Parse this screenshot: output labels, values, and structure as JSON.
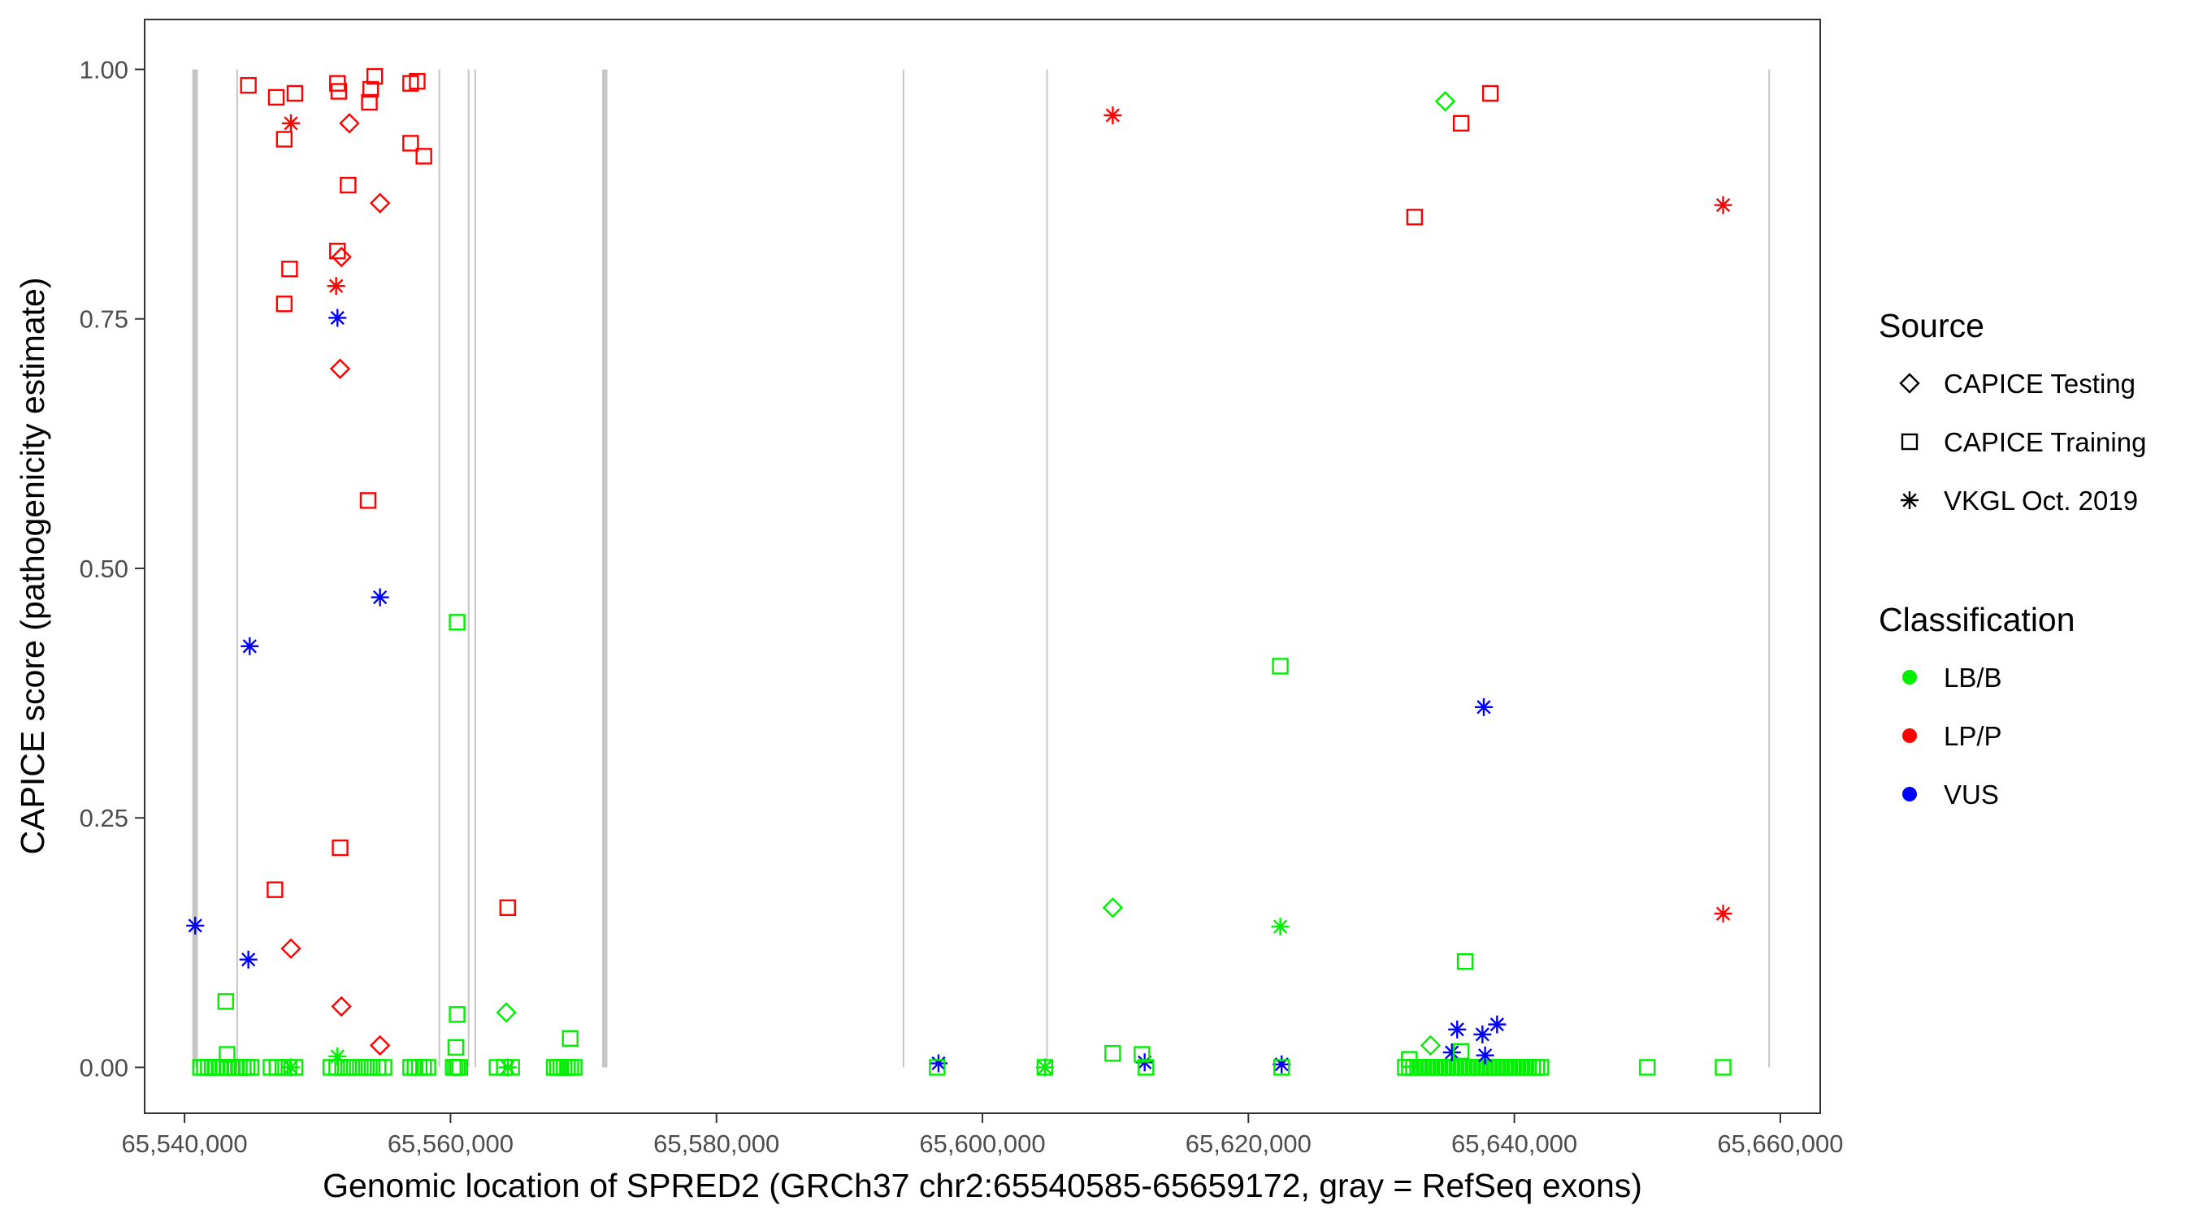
{
  "chart_data": {
    "type": "scatter",
    "title": "",
    "xlabel": "Genomic location of SPRED2 (GRCh37 chr2:65540585-65659172, gray = RefSeq exons)",
    "ylabel": "CAPICE score (pathogenicity estimate)",
    "xlim": [
      65537000,
      65663000
    ],
    "ylim": [
      -0.046,
      1.05
    ],
    "xticks": [
      {
        "value": 65540000,
        "label": "65,540,000"
      },
      {
        "value": 65560000,
        "label": "65,560,000"
      },
      {
        "value": 65580000,
        "label": "65,580,000"
      },
      {
        "value": 65600000,
        "label": "65,600,000"
      },
      {
        "value": 65620000,
        "label": "65,620,000"
      },
      {
        "value": 65640000,
        "label": "65,640,000"
      },
      {
        "value": 65660000,
        "label": "65,660,000"
      }
    ],
    "yticks": [
      {
        "value": 0,
        "label": "0.00"
      },
      {
        "value": 0.25,
        "label": "0.25"
      },
      {
        "value": 0.5,
        "label": "0.50"
      },
      {
        "value": 0.75,
        "label": "0.75"
      },
      {
        "value": 1,
        "label": "1.00"
      }
    ],
    "grid": false,
    "exons": [
      {
        "start": 65540585,
        "end": 65541000
      },
      {
        "start": 65543900,
        "end": 65544000
      },
      {
        "start": 65559100,
        "end": 65559200
      },
      {
        "start": 65561300,
        "end": 65561400
      },
      {
        "start": 65561800,
        "end": 65561900
      },
      {
        "start": 65571400,
        "end": 65571800
      },
      {
        "start": 65594000,
        "end": 65594060
      },
      {
        "start": 65604800,
        "end": 65604900
      },
      {
        "start": 65659100,
        "end": 65659172
      }
    ],
    "legend_position": "right",
    "legend": {
      "source_title": "Source",
      "source_items": [
        {
          "shape": "diamond",
          "label": "CAPICE Testing"
        },
        {
          "shape": "square",
          "label": "CAPICE Training"
        },
        {
          "shape": "star",
          "label": "VKGL Oct. 2019"
        }
      ],
      "class_title": "Classification",
      "class_items": [
        {
          "key": "LB/B",
          "label": "LB/B",
          "color": "#00ee00"
        },
        {
          "key": "LP/P",
          "label": "LP/P",
          "color": "#ff0000"
        },
        {
          "key": "VUS",
          "label": "VUS",
          "color": "#0000ff"
        }
      ]
    },
    "colors": {
      "LB/B": "#00ee00",
      "LP/P": "#ff0000",
      "VUS": "#0000ff"
    },
    "points": [
      {
        "x": 65544800,
        "y": 0.984,
        "shape": "square",
        "cls": "LP/P"
      },
      {
        "x": 65546900,
        "y": 0.972,
        "shape": "square",
        "cls": "LP/P"
      },
      {
        "x": 65548300,
        "y": 0.976,
        "shape": "square",
        "cls": "LP/P"
      },
      {
        "x": 65551500,
        "y": 0.986,
        "shape": "square",
        "cls": "LP/P"
      },
      {
        "x": 65551600,
        "y": 0.978,
        "shape": "square",
        "cls": "LP/P"
      },
      {
        "x": 65554000,
        "y": 0.98,
        "shape": "square",
        "cls": "LP/P"
      },
      {
        "x": 65554300,
        "y": 0.993,
        "shape": "square",
        "cls": "LP/P"
      },
      {
        "x": 65557000,
        "y": 0.986,
        "shape": "square",
        "cls": "LP/P"
      },
      {
        "x": 65557500,
        "y": 0.988,
        "shape": "square",
        "cls": "LP/P"
      },
      {
        "x": 65553900,
        "y": 0.967,
        "shape": "square",
        "cls": "LP/P"
      },
      {
        "x": 65547500,
        "y": 0.93,
        "shape": "square",
        "cls": "LP/P"
      },
      {
        "x": 65557000,
        "y": 0.926,
        "shape": "square",
        "cls": "LP/P"
      },
      {
        "x": 65558000,
        "y": 0.913,
        "shape": "square",
        "cls": "LP/P"
      },
      {
        "x": 65552300,
        "y": 0.884,
        "shape": "square",
        "cls": "LP/P"
      },
      {
        "x": 65547900,
        "y": 0.8,
        "shape": "square",
        "cls": "LP/P"
      },
      {
        "x": 65551500,
        "y": 0.818,
        "shape": "square",
        "cls": "LP/P"
      },
      {
        "x": 65547500,
        "y": 0.765,
        "shape": "square",
        "cls": "LP/P"
      },
      {
        "x": 65553800,
        "y": 0.568,
        "shape": "square",
        "cls": "LP/P"
      },
      {
        "x": 65551700,
        "y": 0.22,
        "shape": "square",
        "cls": "LP/P"
      },
      {
        "x": 65546800,
        "y": 0.178,
        "shape": "square",
        "cls": "LP/P"
      },
      {
        "x": 65564300,
        "y": 0.16,
        "shape": "square",
        "cls": "LP/P"
      },
      {
        "x": 65636000,
        "y": 0.946,
        "shape": "square",
        "cls": "LP/P"
      },
      {
        "x": 65638200,
        "y": 0.976,
        "shape": "square",
        "cls": "LP/P"
      },
      {
        "x": 65632500,
        "y": 0.852,
        "shape": "square",
        "cls": "LP/P"
      },
      {
        "x": 65552400,
        "y": 0.946,
        "shape": "diamond",
        "cls": "LP/P"
      },
      {
        "x": 65554700,
        "y": 0.866,
        "shape": "diamond",
        "cls": "LP/P"
      },
      {
        "x": 65551800,
        "y": 0.812,
        "shape": "diamond",
        "cls": "LP/P"
      },
      {
        "x": 65551700,
        "y": 0.7,
        "shape": "diamond",
        "cls": "LP/P"
      },
      {
        "x": 65548000,
        "y": 0.119,
        "shape": "diamond",
        "cls": "LP/P"
      },
      {
        "x": 65551800,
        "y": 0.061,
        "shape": "diamond",
        "cls": "LP/P"
      },
      {
        "x": 65554700,
        "y": 0.022,
        "shape": "diamond",
        "cls": "LP/P"
      },
      {
        "x": 65548000,
        "y": 0.946,
        "shape": "star",
        "cls": "LP/P"
      },
      {
        "x": 65551400,
        "y": 0.783,
        "shape": "star",
        "cls": "LP/P"
      },
      {
        "x": 65609800,
        "y": 0.954,
        "shape": "star",
        "cls": "LP/P"
      },
      {
        "x": 65655700,
        "y": 0.864,
        "shape": "star",
        "cls": "LP/P"
      },
      {
        "x": 65655700,
        "y": 0.154,
        "shape": "star",
        "cls": "LP/P"
      },
      {
        "x": 65551500,
        "y": 0.751,
        "shape": "star",
        "cls": "VUS"
      },
      {
        "x": 65554700,
        "y": 0.471,
        "shape": "star",
        "cls": "VUS"
      },
      {
        "x": 65544900,
        "y": 0.422,
        "shape": "star",
        "cls": "VUS"
      },
      {
        "x": 65540800,
        "y": 0.142,
        "shape": "star",
        "cls": "VUS"
      },
      {
        "x": 65544800,
        "y": 0.108,
        "shape": "star",
        "cls": "VUS"
      },
      {
        "x": 65637700,
        "y": 0.361,
        "shape": "star",
        "cls": "VUS"
      },
      {
        "x": 65596700,
        "y": 0.004,
        "shape": "star",
        "cls": "VUS"
      },
      {
        "x": 65612200,
        "y": 0.005,
        "shape": "star",
        "cls": "VUS"
      },
      {
        "x": 65622500,
        "y": 0.003,
        "shape": "star",
        "cls": "VUS"
      },
      {
        "x": 65635700,
        "y": 0.038,
        "shape": "star",
        "cls": "VUS"
      },
      {
        "x": 65637600,
        "y": 0.033,
        "shape": "star",
        "cls": "VUS"
      },
      {
        "x": 65638700,
        "y": 0.043,
        "shape": "star",
        "cls": "VUS"
      },
      {
        "x": 65635300,
        "y": 0.015,
        "shape": "star",
        "cls": "VUS"
      },
      {
        "x": 65637800,
        "y": 0.012,
        "shape": "star",
        "cls": "VUS"
      },
      {
        "x": 65560500,
        "y": 0.446,
        "shape": "square",
        "cls": "LB/B"
      },
      {
        "x": 65622400,
        "y": 0.402,
        "shape": "square",
        "cls": "LB/B"
      },
      {
        "x": 65636300,
        "y": 0.106,
        "shape": "square",
        "cls": "LB/B"
      },
      {
        "x": 65543100,
        "y": 0.066,
        "shape": "square",
        "cls": "LB/B"
      },
      {
        "x": 65560500,
        "y": 0.053,
        "shape": "square",
        "cls": "LB/B"
      },
      {
        "x": 65569000,
        "y": 0.029,
        "shape": "square",
        "cls": "LB/B"
      },
      {
        "x": 65560400,
        "y": 0.02,
        "shape": "square",
        "cls": "LB/B"
      },
      {
        "x": 65543200,
        "y": 0.013,
        "shape": "square",
        "cls": "LB/B"
      },
      {
        "x": 65609800,
        "y": 0.014,
        "shape": "square",
        "cls": "LB/B"
      },
      {
        "x": 65612000,
        "y": 0.013,
        "shape": "square",
        "cls": "LB/B"
      },
      {
        "x": 65632100,
        "y": 0.008,
        "shape": "square",
        "cls": "LB/B"
      },
      {
        "x": 65636000,
        "y": 0.016,
        "shape": "square",
        "cls": "LB/B"
      },
      {
        "x": 65650000,
        "y": 0.0,
        "shape": "square",
        "cls": "LB/B"
      },
      {
        "x": 65655700,
        "y": 0.0,
        "shape": "square",
        "cls": "LB/B"
      },
      {
        "x": 65604700,
        "y": 0.0,
        "shape": "square",
        "cls": "LB/B"
      },
      {
        "x": 65596600,
        "y": 0.0,
        "shape": "square",
        "cls": "LB/B"
      },
      {
        "x": 65622500,
        "y": 0.0,
        "shape": "square",
        "cls": "LB/B"
      },
      {
        "x": 65612300,
        "y": 0.0,
        "shape": "square",
        "cls": "LB/B"
      },
      {
        "x": 65634800,
        "y": 0.968,
        "shape": "diamond",
        "cls": "LB/B"
      },
      {
        "x": 65609800,
        "y": 0.16,
        "shape": "diamond",
        "cls": "LB/B"
      },
      {
        "x": 65564200,
        "y": 0.055,
        "shape": "diamond",
        "cls": "LB/B"
      },
      {
        "x": 65633700,
        "y": 0.022,
        "shape": "diamond",
        "cls": "LB/B"
      },
      {
        "x": 65622400,
        "y": 0.141,
        "shape": "star",
        "cls": "LB/B"
      },
      {
        "x": 65551500,
        "y": 0.011,
        "shape": "star",
        "cls": "LB/B"
      },
      {
        "x": 65604700,
        "y": 0.0,
        "shape": "star",
        "cls": "LB/B"
      },
      {
        "x": 65548000,
        "y": 0.0,
        "shape": "star",
        "cls": "LB/B"
      },
      {
        "x": 65564300,
        "y": 0.0,
        "shape": "star",
        "cls": "LB/B"
      }
    ],
    "baseline_clusters": [
      {
        "x_start": 65541200,
        "x_end": 65545000,
        "y": 0.0,
        "count": 14,
        "shape": "square",
        "cls": "LB/B"
      },
      {
        "x_start": 65546500,
        "y": 0.0,
        "x_end": 65548300,
        "count": 5,
        "shape": "square",
        "cls": "LB/B"
      },
      {
        "x_start": 65551000,
        "x_end": 65555000,
        "y": 0.0,
        "count": 10,
        "shape": "square",
        "cls": "LB/B"
      },
      {
        "x_start": 65557000,
        "x_end": 65558300,
        "y": 0.0,
        "count": 5,
        "shape": "square",
        "cls": "LB/B"
      },
      {
        "x_start": 65560200,
        "x_end": 65560700,
        "y": 0.0,
        "count": 4,
        "shape": "square",
        "cls": "LB/B"
      },
      {
        "x_start": 65563500,
        "x_end": 65564600,
        "y": 0.0,
        "count": 3,
        "shape": "square",
        "cls": "LB/B"
      },
      {
        "x_start": 65567800,
        "x_end": 65569300,
        "y": 0.0,
        "count": 7,
        "shape": "square",
        "cls": "LB/B"
      },
      {
        "x_start": 65631800,
        "x_end": 65642000,
        "y": 0.0,
        "count": 34,
        "shape": "square",
        "cls": "LB/B"
      }
    ]
  }
}
